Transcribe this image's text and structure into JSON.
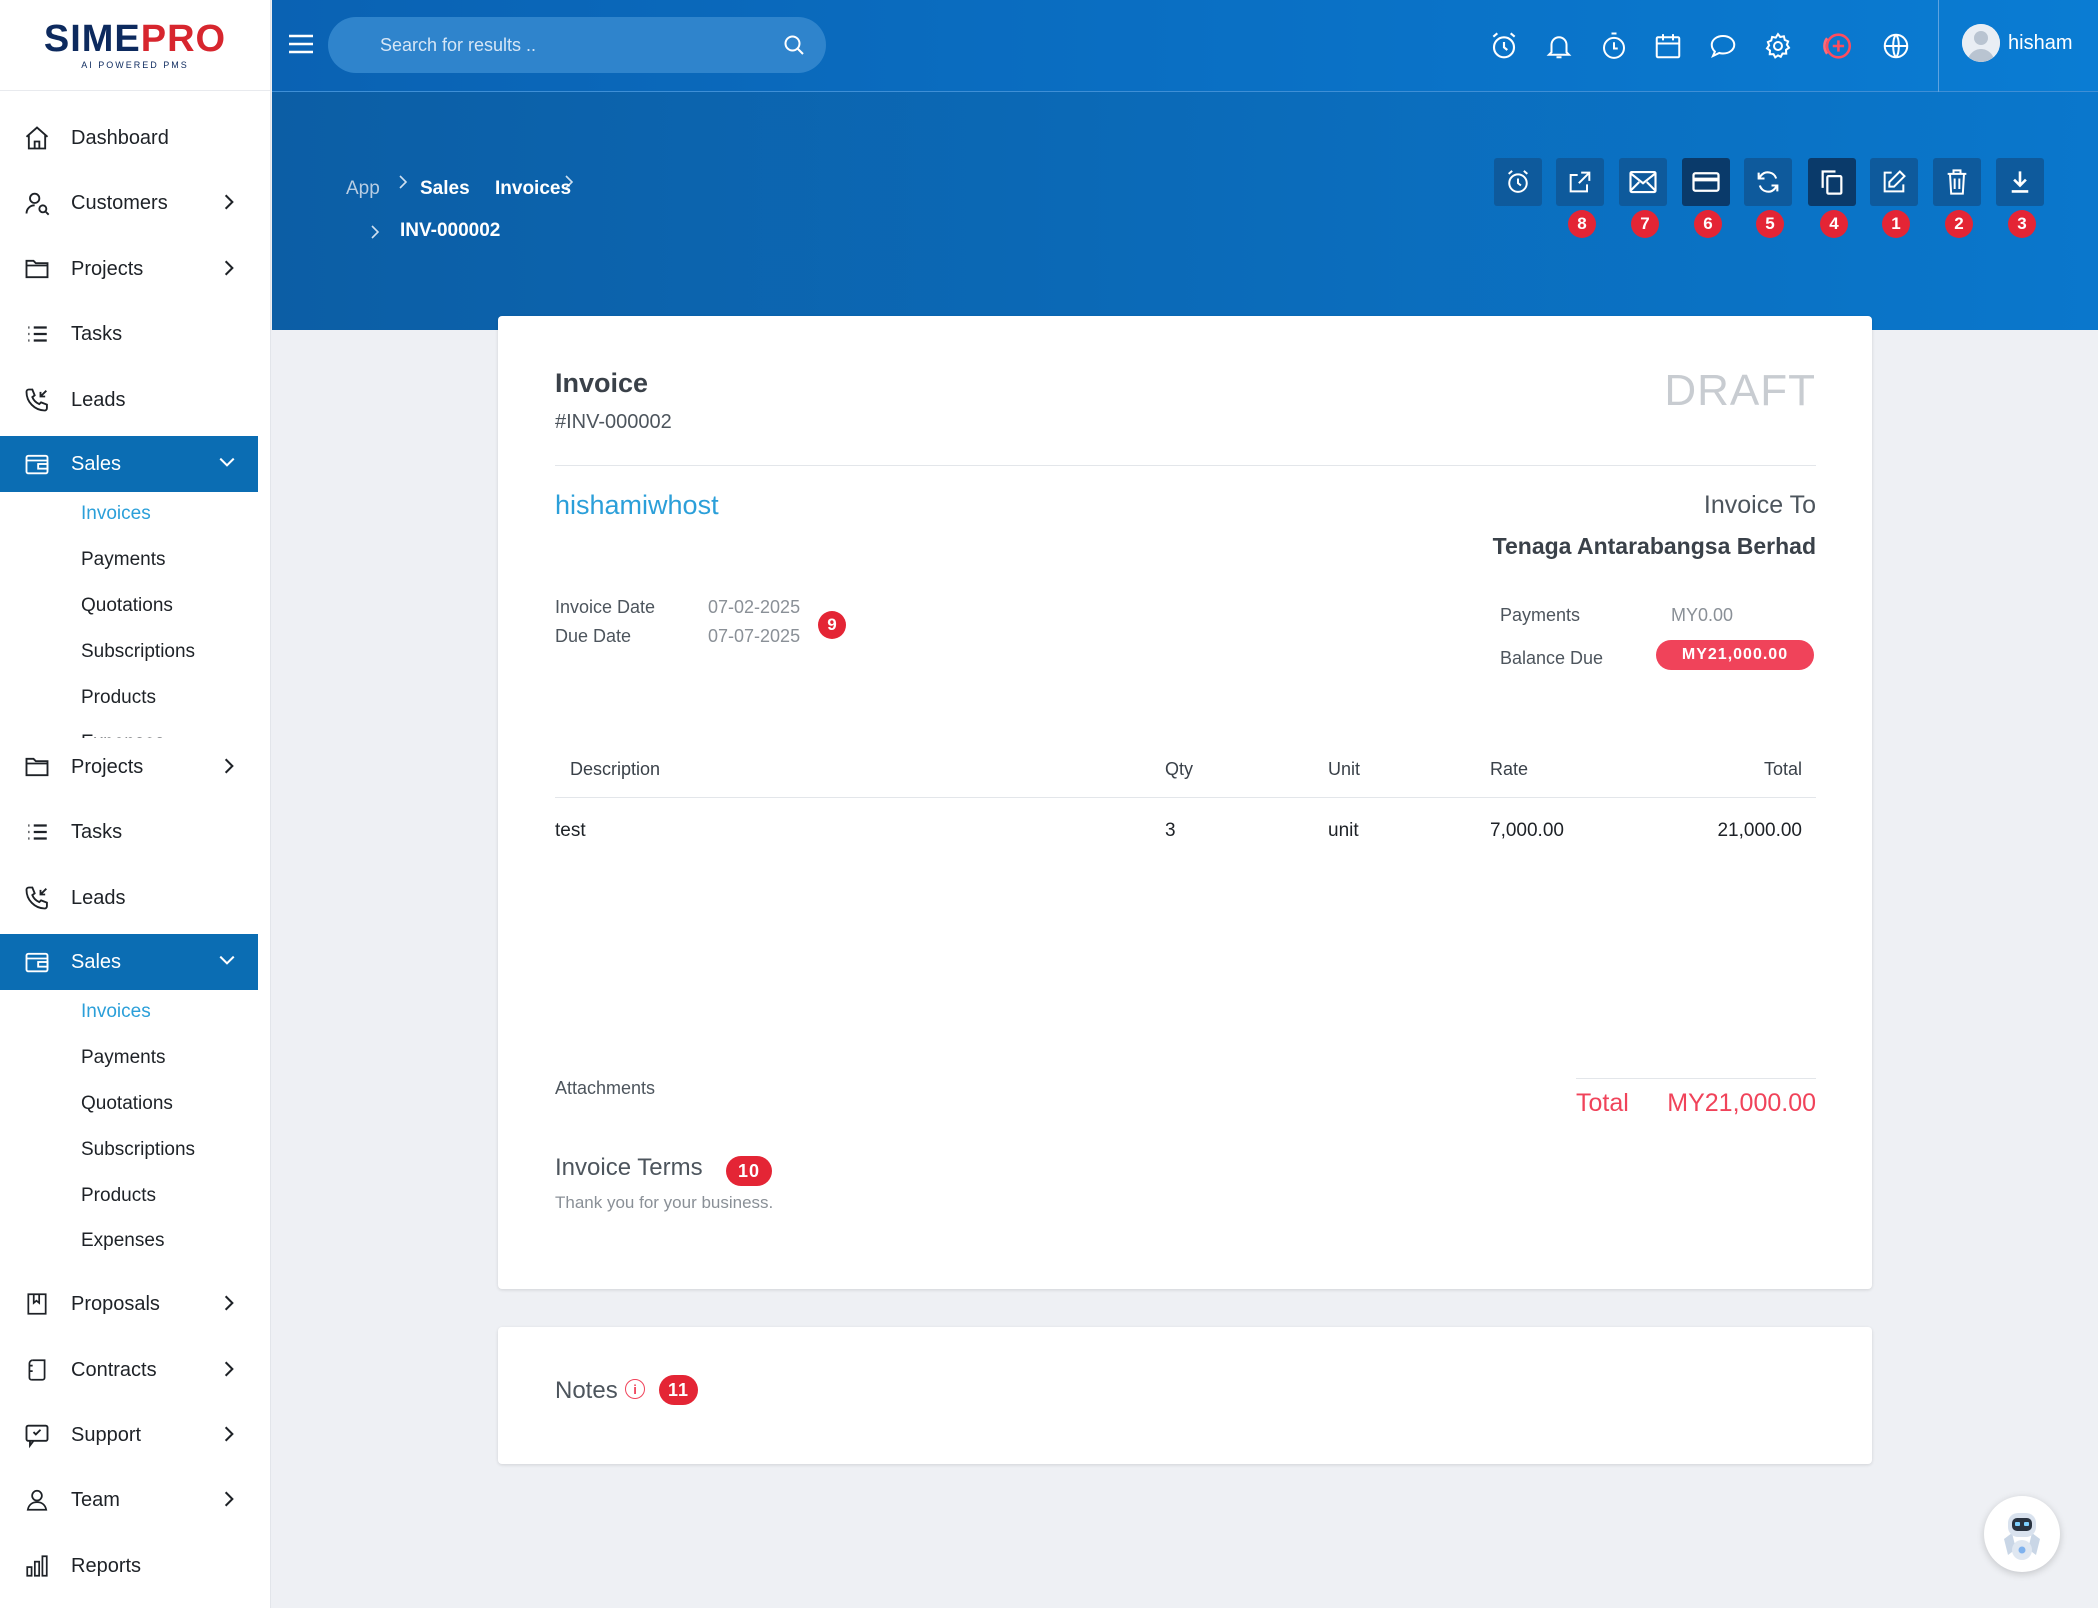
{
  "brand": {
    "name_a": "SIME",
    "name_b": "PRO",
    "tagline": "AI POWERED PMS"
  },
  "search": {
    "placeholder": "Search for results .."
  },
  "user": {
    "name": "hisham"
  },
  "sidebar": {
    "dashboard": "Dashboard",
    "customers": "Customers",
    "projects": "Projects",
    "tasks": "Tasks",
    "leads": "Leads",
    "sales": "Sales",
    "sales_sub": [
      "Invoices",
      "Payments",
      "Quotations",
      "Subscriptions",
      "Products",
      "Expenses"
    ],
    "projects2": "Projects",
    "tasks2": "Tasks",
    "leads2": "Leads",
    "sales2": "Sales",
    "sales_sub2": [
      "Invoices",
      "Payments",
      "Quotations",
      "Subscriptions",
      "Products",
      "Expenses"
    ],
    "proposals": "Proposals",
    "contracts": "Contracts",
    "support": "Support",
    "team": "Team",
    "reports": "Reports"
  },
  "breadcrumb": {
    "app": "App",
    "sales": "Sales",
    "invoices": "Invoices",
    "current": "INV-000002"
  },
  "badges": {
    "b8": "8",
    "b7": "7",
    "b6": "6",
    "b5": "5",
    "b4": "4",
    "b1": "1",
    "b2": "2",
    "b3": "3",
    "b9": "9",
    "b10": "10",
    "b11": "11"
  },
  "invoice": {
    "title": "Invoice",
    "number": "#INV-000002",
    "status": "DRAFT",
    "company": "hishamiwhost",
    "invoice_to_label": "Invoice To",
    "client": "Tenaga Antarabangsa Berhad",
    "invoice_date_label": "Invoice Date",
    "invoice_date": "07-02-2025",
    "due_date_label": "Due Date",
    "due_date": "07-07-2025",
    "payments_label": "Payments",
    "payments": "MY0.00",
    "balance_label": "Balance Due",
    "balance": "MY21,000.00",
    "columns": {
      "description": "Description",
      "qty": "Qty",
      "unit": "Unit",
      "rate": "Rate",
      "total": "Total"
    },
    "items": [
      {
        "description": "test",
        "qty": "3",
        "unit": "unit",
        "rate": "7,000.00",
        "total": "21,000.00"
      }
    ],
    "attachments_label": "Attachments",
    "total_label": "Total",
    "total": "MY21,000.00",
    "terms_label": "Invoice Terms",
    "terms": "Thank you for your business."
  },
  "notes": {
    "label": "Notes",
    "info": "i"
  }
}
